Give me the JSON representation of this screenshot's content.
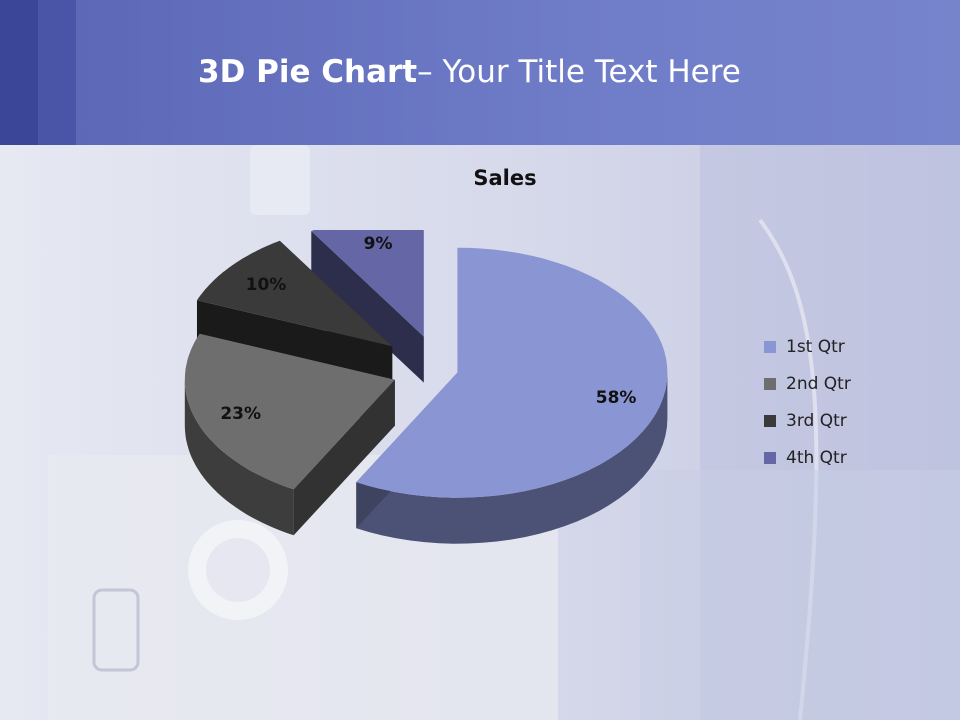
{
  "slide": {
    "title_bold": "3D Pie Chart",
    "title_rest": "– Your Title Text Here",
    "header_color": "#6875c4"
  },
  "chart_data": {
    "type": "pie",
    "title": "Sales",
    "categories": [
      "1st Qtr",
      "2nd Qtr",
      "3rd Qtr",
      "4th Qtr"
    ],
    "values": [
      58,
      23,
      10,
      9
    ],
    "labels": [
      "58%",
      "23%",
      "10%",
      "9%"
    ],
    "colors": [
      "#8a95d4",
      "#6e6e6e",
      "#3a3a3a",
      "#6466a6"
    ],
    "style": "3d-exploded",
    "legend": "right"
  }
}
